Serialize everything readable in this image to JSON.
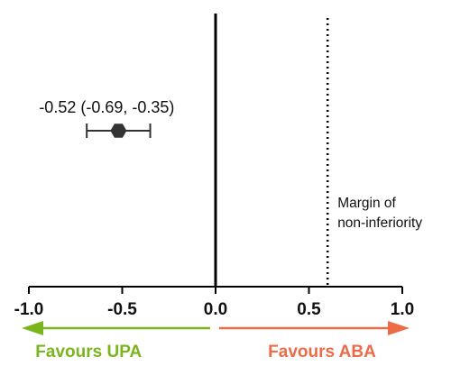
{
  "chart_data": {
    "type": "scatter",
    "title": "",
    "xlabel": "",
    "ylabel": "",
    "xlim": [
      -1.0,
      1.0
    ],
    "x_ticks": [
      -1.0,
      -0.5,
      0.0,
      0.5,
      1.0
    ],
    "x_tick_labels": [
      "-1.0",
      "-0.5",
      "0.0",
      "0.5",
      "1.0"
    ],
    "estimate": {
      "value": -0.52,
      "ci_lower": -0.69,
      "ci_upper": -0.35,
      "label": "-0.52 (-0.69, -0.35)"
    },
    "null_line": 0.0,
    "margin_line": {
      "value": 0.6,
      "label_line1": "Margin of",
      "label_line2": "non-inferiority"
    },
    "favours_left": {
      "label": "Favours UPA",
      "color": "#7ab51d"
    },
    "favours_right": {
      "label": "Favours ABA",
      "color": "#ee6b47"
    },
    "grid": false
  }
}
